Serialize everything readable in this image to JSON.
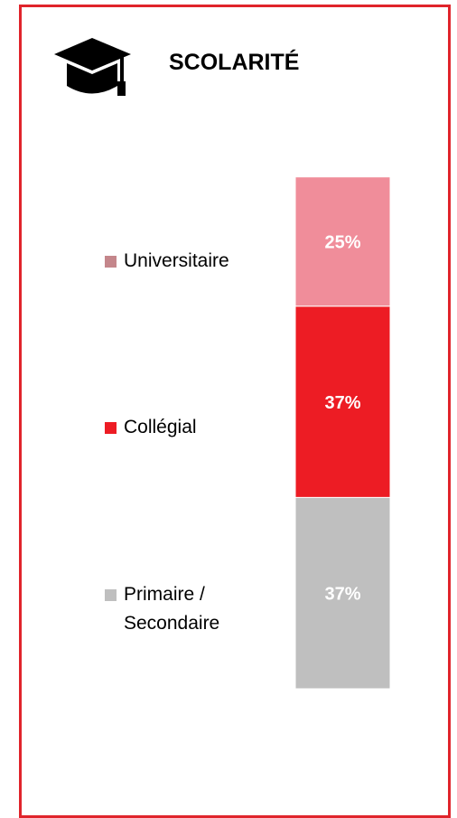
{
  "chart_data": {
    "type": "bar",
    "stacked": true,
    "title": "SCOLARITÉ",
    "categories": [
      null
    ],
    "series": [
      {
        "name": "Universitaire",
        "color": "#f08d9a",
        "legend_color": "#c4868b",
        "values": [
          25
        ],
        "value_labels": [
          "25%"
        ]
      },
      {
        "name": "Collégial",
        "color": "#ed1c24",
        "legend_color": "#ed1c24",
        "values": [
          37
        ],
        "value_labels": [
          "37%"
        ]
      },
      {
        "name": "Primaire / Secondaire",
        "color": "#bfbfbf",
        "legend_color": "#bfbfbf",
        "values": [
          37
        ],
        "value_labels": [
          "37%"
        ]
      }
    ]
  }
}
